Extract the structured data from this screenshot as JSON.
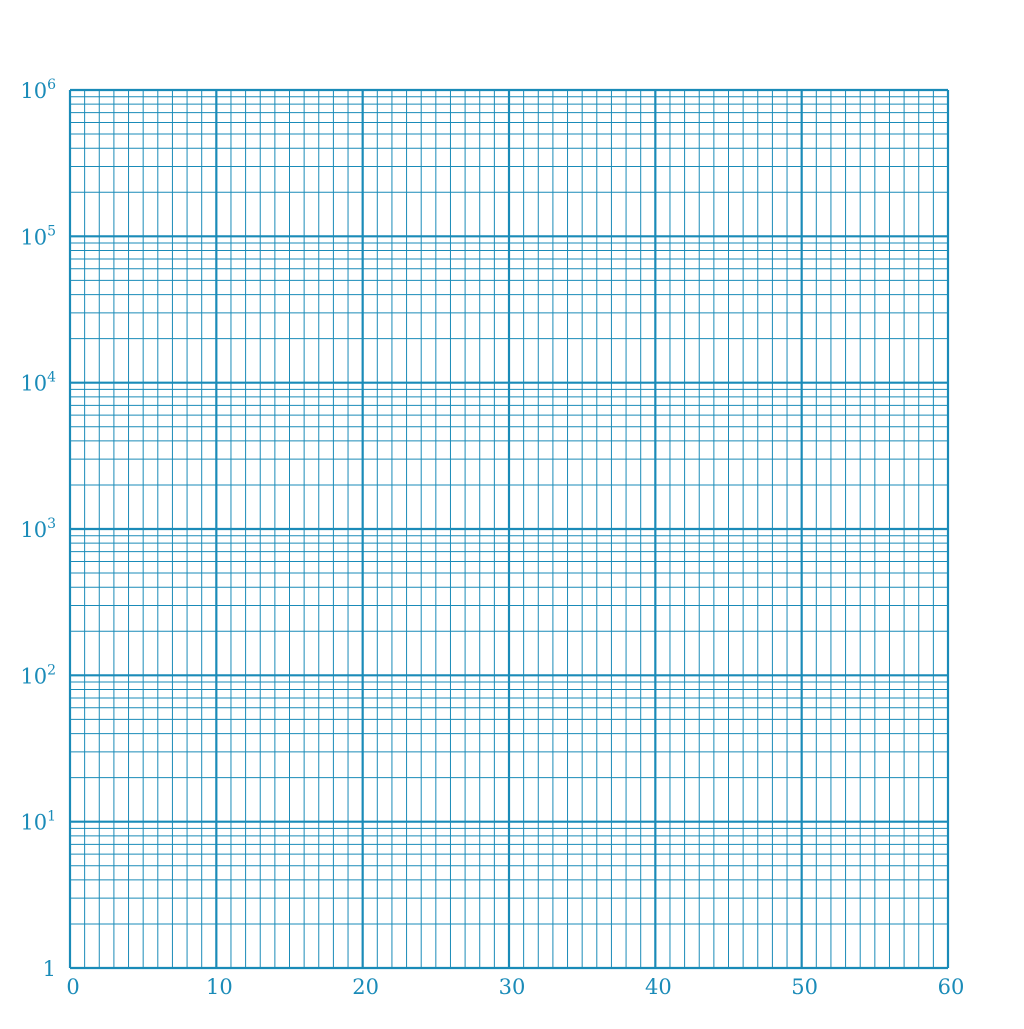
{
  "chart_data": {
    "type": "scatter",
    "title": "",
    "xlabel": "",
    "ylabel": "",
    "x_scale": "linear",
    "y_scale": "log",
    "xlim": [
      0,
      60
    ],
    "ylim": [
      1,
      1000000
    ],
    "x_major_step": 10,
    "x_minor_step": 1,
    "grid": true,
    "grid_color": "#1a8bb8",
    "label_color": "#1a8bb8",
    "x_ticks": [
      {
        "value": 0,
        "label": "0"
      },
      {
        "value": 10,
        "label": "10"
      },
      {
        "value": 20,
        "label": "20"
      },
      {
        "value": 30,
        "label": "30"
      },
      {
        "value": 40,
        "label": "40"
      },
      {
        "value": 50,
        "label": "50"
      },
      {
        "value": 60,
        "label": "60"
      }
    ],
    "y_ticks": [
      {
        "value": 1,
        "base": "1",
        "exp": ""
      },
      {
        "value": 10,
        "base": "10",
        "exp": "1"
      },
      {
        "value": 100,
        "base": "10",
        "exp": "2"
      },
      {
        "value": 1000,
        "base": "10",
        "exp": "3"
      },
      {
        "value": 10000,
        "base": "10",
        "exp": "4"
      },
      {
        "value": 100000,
        "base": "10",
        "exp": "5"
      },
      {
        "value": 1000000,
        "base": "10",
        "exp": "6"
      }
    ],
    "series": []
  }
}
